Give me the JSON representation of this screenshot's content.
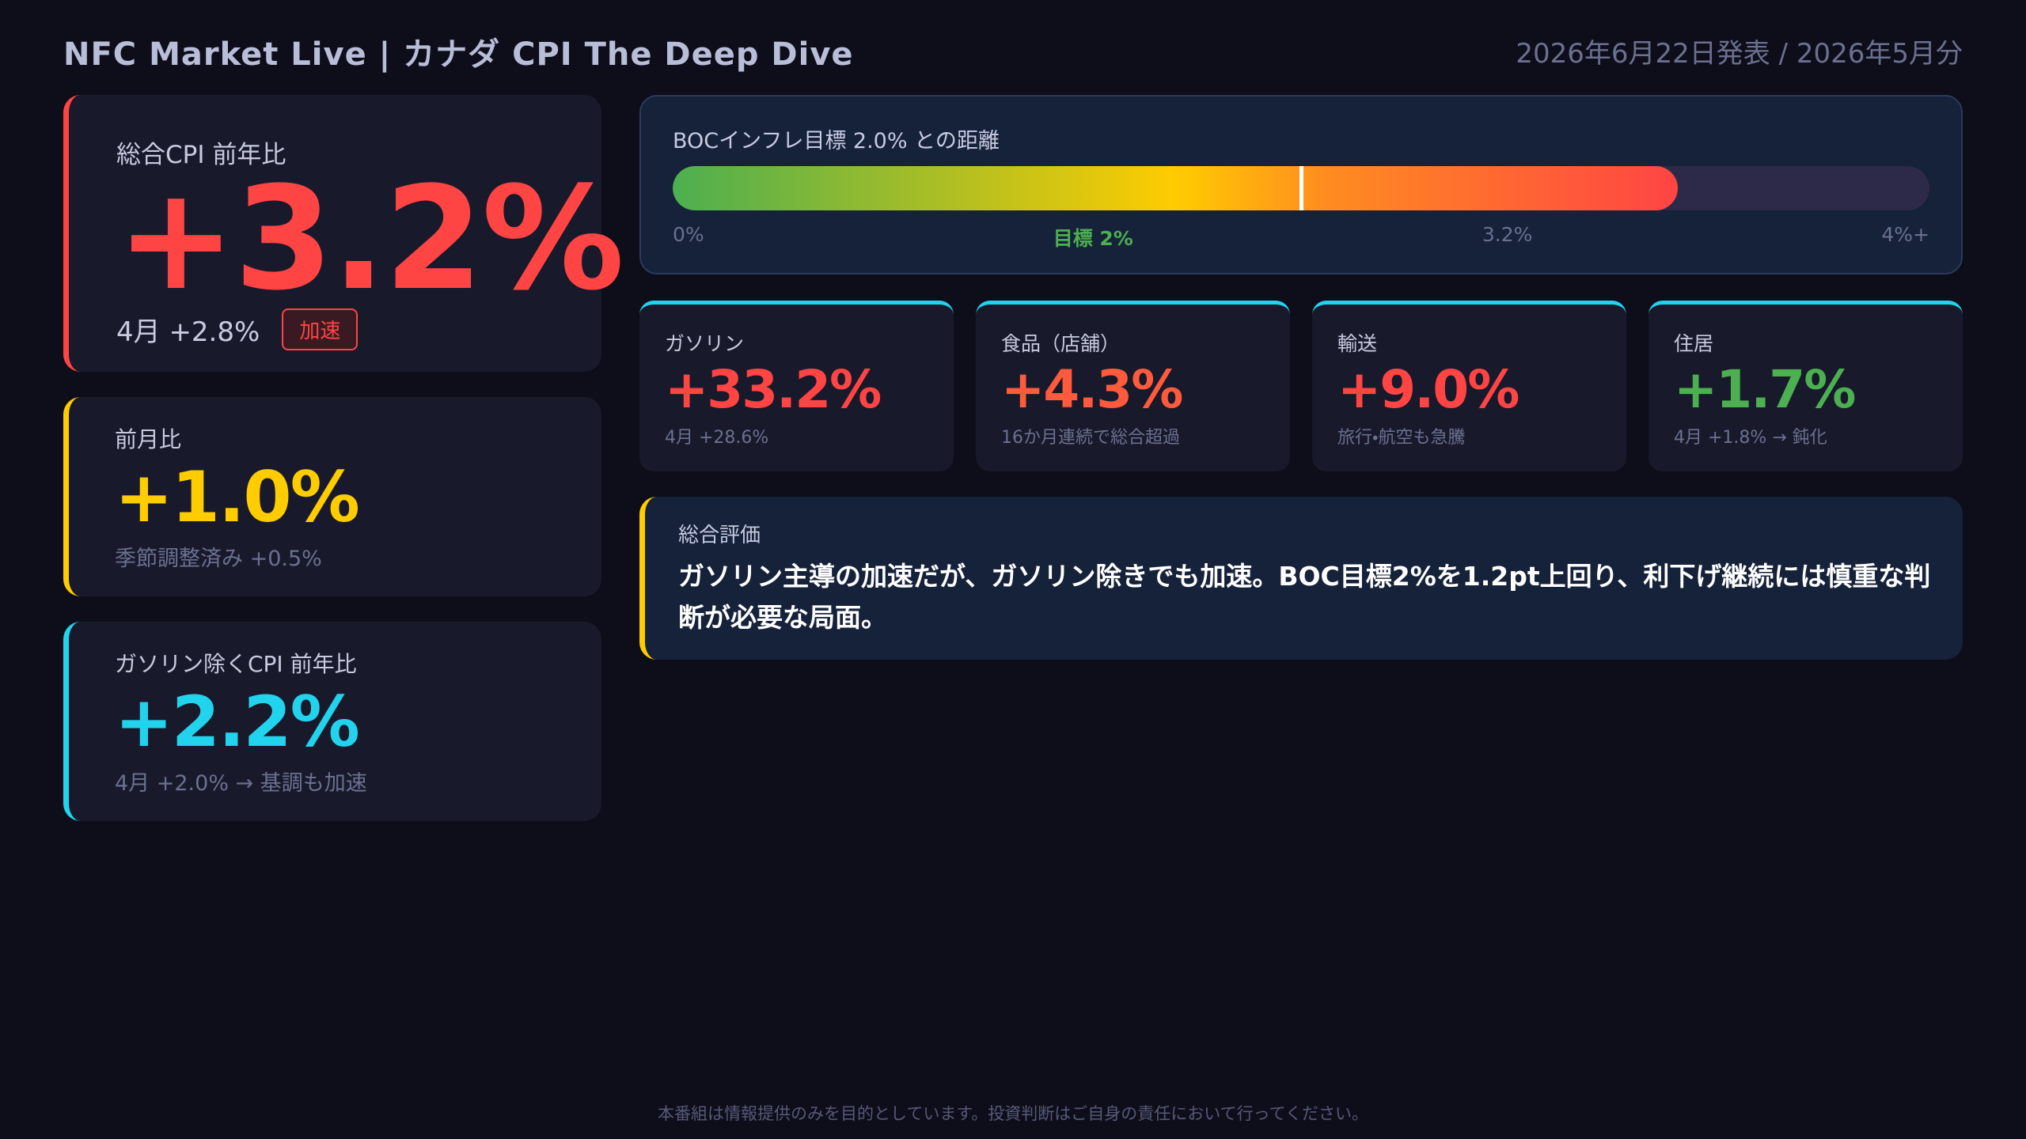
{
  "header": {
    "title": "NFC Market Live | カナダ CPI The Deep Dive",
    "date": "2026年6月22日発表 / 2026年5月分"
  },
  "cards": [
    {
      "label": "総合CPI 前年比",
      "value": "+3.2%",
      "sub": "4月 +2.8%",
      "badge": "加速",
      "color": "#ff4444"
    },
    {
      "label": "前月比",
      "value": "+1.0%",
      "sub": "季節調整済み +0.5%",
      "color": "#ffcc00"
    },
    {
      "label": "ガソリン除くCPI 前年比",
      "value": "+2.2%",
      "sub": "4月 +2.0% → 基調も加速",
      "color": "#22d3ee"
    }
  ],
  "gauge": {
    "title": "BOCインフレ目標 2.0% との距離",
    "value": 3.2,
    "target": 2,
    "max": 4,
    "ticks": [
      "0%",
      "目標 2%",
      "3.2%",
      "4%+"
    ]
  },
  "sectors": [
    {
      "label": "ガソリン",
      "value": "+33.2%",
      "sub": "4月 +28.6%",
      "color": "#ff4444"
    },
    {
      "label": "食品（店舗）",
      "value": "+4.3%",
      "sub": "16か月連続で総合超過",
      "color": "#ff5a3c"
    },
    {
      "label": "輸送",
      "value": "+9.0%",
      "sub": "旅行・航空も急騰",
      "color": "#ff4444"
    },
    {
      "label": "住居",
      "value": "+1.7%",
      "sub": "4月 +1.8% → 鈍化",
      "color": "#4caf50"
    }
  ],
  "summary": {
    "label": "総合評価",
    "text": "ガソリン主導の加速だが、ガソリン除きでも加速。BOC目標2%を1.2pt上回り、利下げ継続には慎重な判断が必要な局面。"
  },
  "footer": "本番組は情報提供のみを目的としています。投資判断はご自身の責任において行ってください。"
}
